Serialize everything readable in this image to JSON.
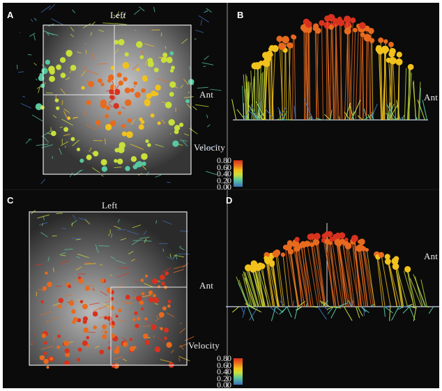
{
  "panels": {
    "a": {
      "letter": "A",
      "left_label": "Left",
      "ant_label": "Ant"
    },
    "b": {
      "letter": "B",
      "ant_label": "Ant"
    },
    "c": {
      "letter": "C",
      "left_label": "Left",
      "ant_label": "Ant"
    },
    "d": {
      "letter": "D",
      "ant_label": "Ant"
    }
  },
  "velocity_legend": {
    "title": "Velocity",
    "ticks": [
      "0.80",
      "0.60",
      "0.40",
      "0.20",
      "0.00"
    ],
    "colors": [
      "#d8321e",
      "#e86a1e",
      "#f2c21c",
      "#c9df3a",
      "#57c7a0",
      "#3f6fb8"
    ]
  },
  "colors": {
    "background": "#0b0b0b",
    "divider": "#9a9a9a",
    "box": "#e6e6e6"
  }
}
